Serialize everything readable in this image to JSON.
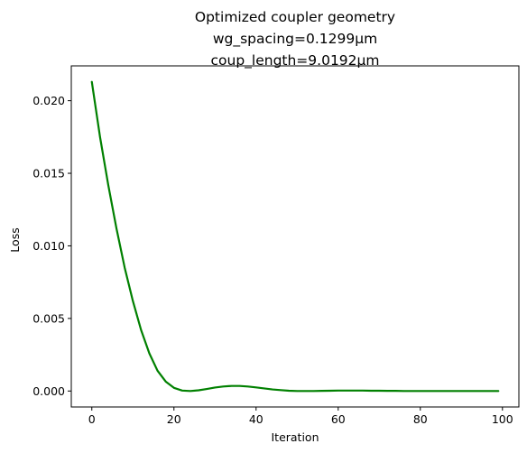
{
  "chart_data": {
    "type": "line",
    "title_lines": [
      "Optimized coupler geometry",
      "wg_spacing=0.1299μm",
      "coup_length=9.0192μm"
    ],
    "xlabel": "Iteration",
    "ylabel": "Loss",
    "xlim": [
      -5,
      104
    ],
    "ylim": [
      -0.0011,
      0.0224
    ],
    "xticks": [
      0,
      20,
      40,
      60,
      80,
      100
    ],
    "xtick_labels": [
      "0",
      "20",
      "40",
      "60",
      "80",
      "100"
    ],
    "yticks": [
      0.0,
      0.005,
      0.01,
      0.015,
      0.02
    ],
    "ytick_labels": [
      "0.000",
      "0.005",
      "0.010",
      "0.015",
      "0.020"
    ],
    "grid": false,
    "series": [
      {
        "color": "#008000",
        "x": [
          0,
          2,
          4,
          6,
          8,
          10,
          12,
          14,
          16,
          18,
          20,
          22,
          24,
          26,
          28,
          30,
          32,
          34,
          36,
          38,
          40,
          42,
          44,
          46,
          48,
          50,
          52,
          54,
          56,
          58,
          60,
          62,
          64,
          66,
          68,
          70,
          72,
          74,
          76,
          78,
          80,
          82,
          84,
          86,
          88,
          90,
          92,
          94,
          96,
          99
        ],
        "y": [
          0.0213,
          0.0175,
          0.0142,
          0.0112,
          0.0085,
          0.0062,
          0.0042,
          0.0026,
          0.0014,
          0.00065,
          0.00022,
          3e-05,
          0.0,
          5e-05,
          0.00014,
          0.00024,
          0.00031,
          0.00035,
          0.00035,
          0.00031,
          0.00025,
          0.00018,
          0.00011,
          6e-05,
          2e-05,
          0.0,
          0.0,
          0.0,
          1e-05,
          2e-05,
          3e-05,
          3e-05,
          3e-05,
          3e-05,
          2e-05,
          2e-05,
          1e-05,
          1e-05,
          0.0,
          0.0,
          0.0,
          0.0,
          0.0,
          0.0,
          0.0,
          0.0,
          0.0,
          0.0,
          0.0,
          0.0
        ]
      }
    ]
  }
}
